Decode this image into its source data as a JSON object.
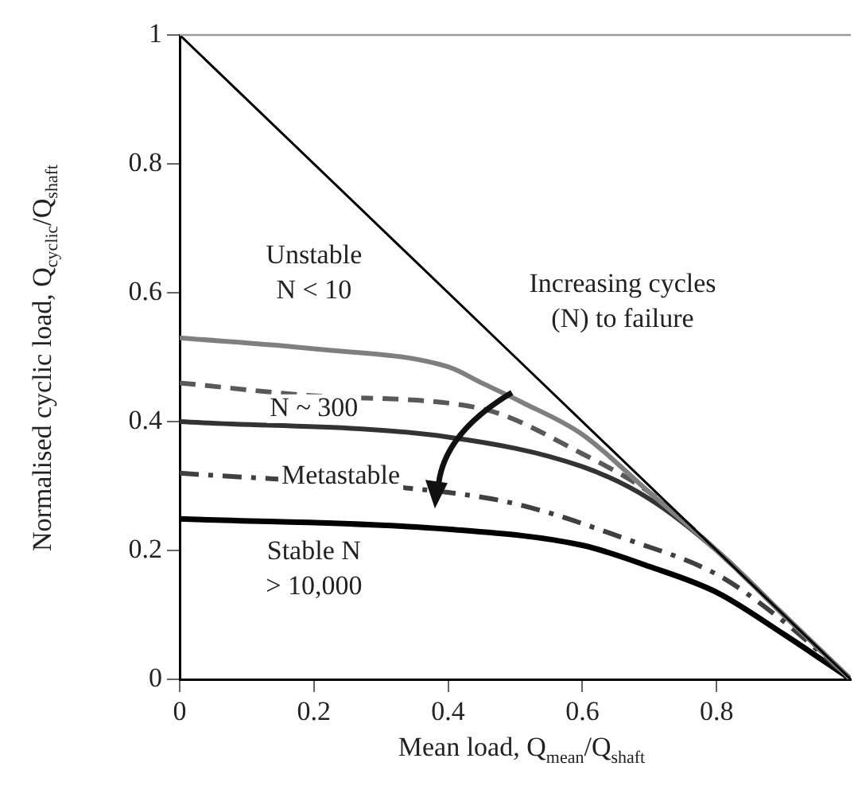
{
  "chart_data": {
    "type": "line",
    "xlabel": "Mean load, Q$_{mean}$/Q$_{shaft}$",
    "ylabel": "Normalised cyclic load, Q$_{cyclic}$/Q$_{shaft}$",
    "xlim": [
      0,
      1
    ],
    "ylim": [
      0,
      1
    ],
    "xticks": [
      0,
      0.2,
      0.4,
      0.6,
      0.8
    ],
    "yticks": [
      0,
      0.2,
      0.4,
      0.6,
      0.8,
      1
    ],
    "grid": false,
    "legend": false,
    "marker": "none",
    "series": [
      {
        "color": "#000000",
        "x": [
          0,
          1
        ],
        "values": [
          1,
          0
        ],
        "line_style": "solid"
      },
      {
        "color": "#7f7f7f",
        "x": [
          0,
          0.2,
          0.4,
          0.45,
          0.51,
          0.6,
          0.7,
          0.8,
          0.9,
          1
        ],
        "values": [
          0.53,
          0.513,
          0.485,
          0.46,
          0.43,
          0.38,
          0.29,
          0.2,
          0.1,
          0
        ],
        "line_style": "solid"
      },
      {
        "color": "#595959",
        "x": [
          0,
          0.2,
          0.45,
          0.6,
          0.7,
          0.8,
          0.9,
          1
        ],
        "values": [
          0.46,
          0.44,
          0.42,
          0.35,
          0.29,
          0.2,
          0.1,
          0
        ],
        "line_style": "dashed"
      },
      {
        "color": "#333333",
        "x": [
          0,
          0.4,
          0.6,
          0.7,
          0.8,
          0.9,
          1
        ],
        "values": [
          0.4,
          0.376,
          0.33,
          0.28,
          0.2,
          0.1,
          0
        ],
        "line_style": "solid"
      },
      {
        "color": "#404040",
        "x": [
          0,
          0.4,
          0.51,
          0.67,
          0.8,
          0.89,
          1
        ],
        "values": [
          0.32,
          0.29,
          0.27,
          0.216,
          0.163,
          0.098,
          0
        ],
        "line_style": "dashdot"
      },
      {
        "color": "#000000",
        "x": [
          0,
          0.4,
          0.6,
          0.7,
          0.8,
          0.9,
          1
        ],
        "values": [
          0.249,
          0.233,
          0.208,
          0.175,
          0.135,
          0.07,
          0
        ],
        "line_style": "solid"
      }
    ],
    "annotations": [
      "Unstable\nN < 10",
      "Increasing cycles\n(N) to failure",
      "N ~ 300",
      "Metastable",
      "Stable N\n> 10,000"
    ]
  }
}
